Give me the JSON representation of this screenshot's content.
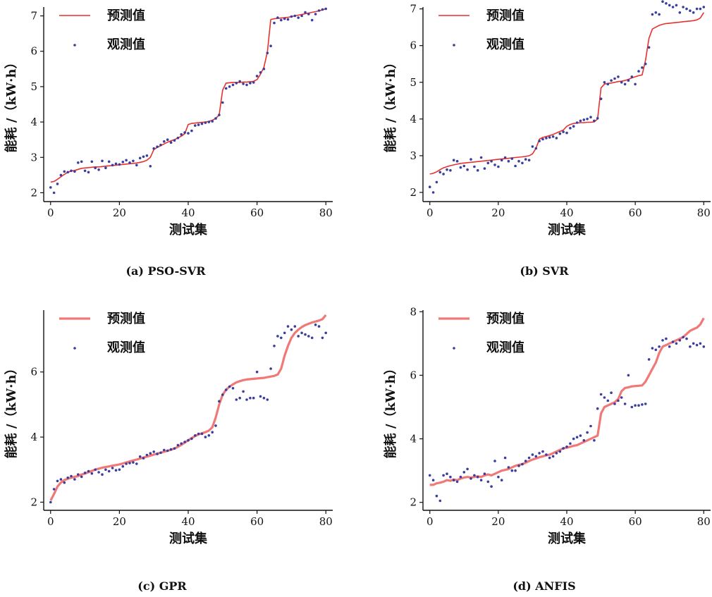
{
  "colors": {
    "predicted": "#e8312f",
    "observed": "#3a3f9e",
    "axis": "#111111"
  },
  "chart_data": [
    {
      "type": "line",
      "caption": "(a) PSO-SVR",
      "xlabel": "测试集",
      "ylabel": "能耗 /（kW·h）",
      "xlim": [
        -2,
        82
      ],
      "ylim": [
        1.75,
        7.25
      ],
      "xticks": [
        0,
        20,
        40,
        60,
        80
      ],
      "yticks": [
        2,
        3,
        4,
        5,
        6,
        7
      ],
      "legend": [
        "预测值",
        "观测值"
      ],
      "line_style": "thin",
      "series": [
        {
          "name": "预测值",
          "kind": "line",
          "values": [
            2.3,
            2.32,
            2.38,
            2.45,
            2.52,
            2.58,
            2.61,
            2.63,
            2.66,
            2.69,
            2.7,
            2.71,
            2.72,
            2.73,
            2.73,
            2.74,
            2.75,
            2.76,
            2.77,
            2.78,
            2.79,
            2.8,
            2.81,
            2.82,
            2.83,
            2.84,
            2.86,
            2.88,
            2.92,
            3.0,
            3.22,
            3.28,
            3.33,
            3.38,
            3.43,
            3.47,
            3.5,
            3.55,
            3.6,
            3.67,
            3.93,
            3.96,
            3.97,
            3.98,
            3.99,
            4.0,
            4.02,
            4.05,
            4.1,
            4.2,
            4.9,
            5.1,
            5.11,
            5.12,
            5.12,
            5.12,
            5.13,
            5.13,
            5.14,
            5.15,
            5.2,
            5.35,
            5.55,
            5.98,
            6.9,
            6.92,
            6.93,
            6.94,
            6.95,
            6.96,
            6.98,
            7.0,
            7.02,
            7.04,
            7.06,
            7.08,
            7.1,
            7.12,
            7.14,
            7.17,
            7.2
          ]
        },
        {
          "name": "观测值",
          "kind": "scatter",
          "values": [
            2.15,
            2.0,
            2.25,
            2.5,
            2.6,
            2.58,
            2.62,
            2.6,
            2.85,
            2.88,
            2.62,
            2.58,
            2.88,
            2.7,
            2.65,
            2.9,
            2.7,
            2.88,
            2.78,
            2.82,
            2.8,
            2.87,
            2.92,
            2.85,
            2.9,
            2.78,
            2.98,
            3.02,
            3.05,
            2.75,
            3.25,
            3.3,
            3.35,
            3.45,
            3.5,
            3.42,
            3.48,
            3.55,
            3.65,
            3.7,
            3.68,
            3.75,
            3.9,
            3.92,
            3.95,
            3.98,
            4.0,
            4.02,
            4.1,
            4.2,
            4.55,
            4.95,
            5.0,
            5.05,
            5.1,
            5.15,
            5.08,
            5.05,
            5.1,
            5.12,
            5.3,
            5.4,
            5.5,
            5.95,
            6.15,
            6.8,
            6.95,
            6.88,
            6.92,
            6.9,
            6.98,
            7.0,
            6.95,
            7.0,
            7.1,
            7.05,
            6.88,
            7.05,
            7.15,
            7.18,
            7.2
          ]
        }
      ]
    },
    {
      "type": "line",
      "caption": "(b) SVR",
      "xlabel": "测试集",
      "ylabel": "能耗 /（kW·h）",
      "xlim": [
        -2,
        82
      ],
      "ylim": [
        1.75,
        7.05
      ],
      "xticks": [
        0,
        20,
        40,
        60,
        80
      ],
      "yticks": [
        2,
        3,
        4,
        5,
        6,
        7
      ],
      "legend": [
        "预测值",
        "观测值"
      ],
      "line_style": "thin",
      "series": [
        {
          "name": "预测值",
          "kind": "line",
          "values": [
            2.5,
            2.52,
            2.56,
            2.62,
            2.67,
            2.7,
            2.73,
            2.75,
            2.77,
            2.79,
            2.8,
            2.81,
            2.82,
            2.83,
            2.84,
            2.85,
            2.86,
            2.87,
            2.88,
            2.89,
            2.9,
            2.91,
            2.92,
            2.93,
            2.94,
            2.95,
            2.96,
            2.97,
            2.98,
            3.0,
            3.05,
            3.2,
            3.45,
            3.5,
            3.52,
            3.55,
            3.58,
            3.62,
            3.66,
            3.7,
            3.8,
            3.85,
            3.88,
            3.89,
            3.9,
            3.9,
            3.91,
            3.91,
            3.92,
            4.0,
            4.85,
            4.95,
            4.97,
            4.98,
            5.0,
            5.02,
            5.03,
            5.05,
            5.08,
            5.12,
            5.15,
            5.18,
            5.2,
            5.6,
            6.2,
            6.45,
            6.5,
            6.55,
            6.58,
            6.6,
            6.61,
            6.62,
            6.63,
            6.64,
            6.65,
            6.66,
            6.67,
            6.68,
            6.7,
            6.75,
            6.9
          ]
        },
        {
          "name": "观测值",
          "kind": "scatter",
          "values": [
            2.15,
            2.0,
            2.28,
            2.55,
            2.5,
            2.62,
            2.6,
            2.88,
            2.85,
            2.68,
            2.72,
            2.62,
            2.9,
            2.7,
            2.6,
            2.95,
            2.65,
            2.8,
            2.85,
            2.75,
            2.7,
            2.88,
            2.95,
            2.85,
            2.92,
            2.72,
            2.85,
            2.8,
            2.9,
            2.88,
            3.25,
            3.2,
            3.4,
            3.45,
            3.48,
            3.5,
            3.52,
            3.48,
            3.6,
            3.65,
            3.62,
            3.75,
            3.8,
            3.9,
            3.95,
            3.98,
            4.0,
            4.05,
            3.95,
            4.02,
            4.55,
            5.0,
            4.95,
            5.05,
            5.1,
            5.15,
            5.0,
            4.95,
            5.05,
            5.15,
            4.95,
            5.3,
            5.4,
            5.5,
            5.95,
            6.85,
            6.9,
            6.85,
            7.2,
            7.15,
            7.1,
            7.05,
            7.1,
            6.9,
            7.05,
            7.0,
            6.95,
            6.9,
            7.0,
            7.0,
            7.05
          ]
        }
      ]
    },
    {
      "type": "line",
      "caption": "(c) GPR",
      "xlabel": "测试集",
      "ylabel": "能耗 /（kW·h）",
      "xlim": [
        -2,
        82
      ],
      "ylim": [
        1.75,
        7.9
      ],
      "xticks": [
        0,
        20,
        40,
        60,
        80
      ],
      "yticks": [
        2,
        4,
        6
      ],
      "legend": [
        "预测值",
        "观测值"
      ],
      "line_style": "thick",
      "series": [
        {
          "name": "预测值",
          "kind": "line",
          "values": [
            2.05,
            2.25,
            2.48,
            2.6,
            2.68,
            2.72,
            2.75,
            2.78,
            2.8,
            2.85,
            2.88,
            2.92,
            2.96,
            3.0,
            3.03,
            3.06,
            3.08,
            3.1,
            3.12,
            3.14,
            3.16,
            3.19,
            3.22,
            3.25,
            3.28,
            3.31,
            3.34,
            3.37,
            3.4,
            3.43,
            3.46,
            3.49,
            3.52,
            3.55,
            3.58,
            3.61,
            3.65,
            3.7,
            3.76,
            3.83,
            3.9,
            3.97,
            4.03,
            4.08,
            4.12,
            4.15,
            4.2,
            4.3,
            4.6,
            5.0,
            5.3,
            5.45,
            5.55,
            5.62,
            5.68,
            5.72,
            5.75,
            5.77,
            5.78,
            5.79,
            5.8,
            5.81,
            5.82,
            5.84,
            5.86,
            5.88,
            5.92,
            6.1,
            6.5,
            6.8,
            7.05,
            7.2,
            7.3,
            7.38,
            7.44,
            7.48,
            7.52,
            7.55,
            7.58,
            7.62,
            7.75
          ]
        },
        {
          "name": "观测值",
          "kind": "scatter",
          "values": [
            2.0,
            2.4,
            2.65,
            2.7,
            2.6,
            2.75,
            2.8,
            2.7,
            2.85,
            2.78,
            2.9,
            2.95,
            2.88,
            3.0,
            2.92,
            2.85,
            3.0,
            2.95,
            3.05,
            2.98,
            3.0,
            3.1,
            3.18,
            3.2,
            3.22,
            3.18,
            3.4,
            3.35,
            3.45,
            3.5,
            3.55,
            3.48,
            3.52,
            3.6,
            3.58,
            3.62,
            3.65,
            3.75,
            3.8,
            3.85,
            3.9,
            3.95,
            4.05,
            4.1,
            4.1,
            4.0,
            4.05,
            4.15,
            4.35,
            5.1,
            5.3,
            5.45,
            5.55,
            5.5,
            5.15,
            5.2,
            5.4,
            5.15,
            5.2,
            5.2,
            6.0,
            5.25,
            5.2,
            5.15,
            6.1,
            6.8,
            7.1,
            7.05,
            7.2,
            7.4,
            7.3,
            7.4,
            7.1,
            7.2,
            7.15,
            7.1,
            7.05,
            7.45,
            7.4,
            7.05,
            7.2
          ]
        }
      ]
    },
    {
      "type": "line",
      "caption": "(d) ANFIS",
      "xlabel": "测试集",
      "ylabel": "能耗 /（kW·h）",
      "xlim": [
        -2,
        82
      ],
      "ylim": [
        1.75,
        8.05
      ],
      "xticks": [
        0,
        20,
        40,
        60,
        80
      ],
      "yticks": [
        2,
        4,
        6,
        8
      ],
      "legend": [
        "预测值",
        "观测值"
      ],
      "line_style": "thick",
      "series": [
        {
          "name": "预测值",
          "kind": "line",
          "values": [
            2.55,
            2.55,
            2.6,
            2.62,
            2.65,
            2.7,
            2.68,
            2.72,
            2.7,
            2.75,
            2.78,
            2.8,
            2.78,
            2.8,
            2.82,
            2.8,
            2.85,
            2.88,
            2.85,
            2.9,
            2.95,
            3.0,
            3.02,
            3.05,
            3.1,
            3.15,
            3.18,
            3.2,
            3.25,
            3.3,
            3.35,
            3.38,
            3.42,
            3.45,
            3.48,
            3.5,
            3.55,
            3.6,
            3.65,
            3.7,
            3.72,
            3.75,
            3.78,
            3.8,
            3.85,
            3.9,
            3.95,
            4.0,
            4.05,
            4.1,
            4.8,
            5.0,
            5.05,
            5.1,
            5.15,
            5.25,
            5.5,
            5.6,
            5.62,
            5.65,
            5.66,
            5.67,
            5.68,
            5.8,
            6.0,
            6.2,
            6.4,
            6.7,
            6.9,
            6.95,
            7.0,
            7.05,
            7.1,
            7.15,
            7.2,
            7.3,
            7.4,
            7.45,
            7.5,
            7.6,
            7.8
          ]
        },
        {
          "name": "观测值",
          "kind": "scatter",
          "values": [
            2.85,
            2.7,
            2.2,
            2.05,
            2.85,
            2.9,
            2.8,
            2.7,
            2.65,
            2.8,
            2.95,
            3.05,
            2.75,
            2.85,
            2.8,
            2.7,
            2.9,
            2.65,
            2.5,
            3.3,
            2.8,
            2.7,
            3.4,
            3.1,
            3.0,
            3.0,
            3.15,
            3.2,
            3.3,
            3.4,
            3.5,
            3.45,
            3.55,
            3.6,
            3.5,
            3.4,
            3.45,
            3.55,
            3.6,
            3.7,
            3.75,
            3.85,
            4.0,
            4.05,
            4.1,
            3.95,
            4.2,
            4.4,
            3.95,
            4.95,
            5.4,
            5.3,
            5.2,
            5.45,
            5.1,
            5.2,
            5.3,
            5.1,
            6.0,
            5.0,
            5.05,
            5.05,
            5.08,
            5.1,
            6.5,
            6.85,
            6.8,
            6.9,
            7.1,
            7.15,
            6.9,
            7.05,
            7.0,
            7.1,
            7.2,
            7.15,
            6.9,
            7.0,
            6.95,
            7.0,
            6.9
          ]
        }
      ]
    }
  ]
}
